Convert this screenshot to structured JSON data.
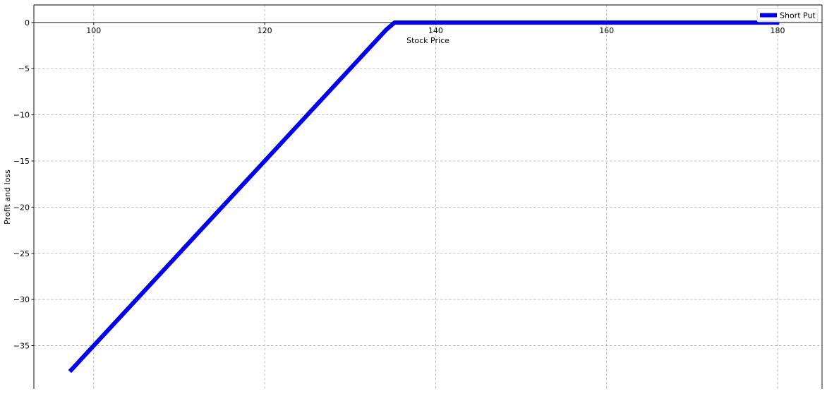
{
  "chart_data": {
    "type": "line",
    "xlabel": "Stock Price",
    "ylabel": "Profit and loss",
    "xlim": [
      93,
      185.2
    ],
    "ylim": [
      -39.7,
      1.9
    ],
    "xticks": [
      100,
      120,
      140,
      160,
      180
    ],
    "yticks": [
      0,
      -5,
      -10,
      -15,
      -20,
      -25,
      -30,
      -35
    ],
    "ytick_labels": [
      "0",
      "−5",
      "−10",
      "−15",
      "−20",
      "−25",
      "−30",
      "−35"
    ],
    "x_axis_position": "y=0",
    "grid": true,
    "legend": "top-right",
    "series": [
      {
        "name": "Short Put",
        "color": "#0000ee",
        "x": [
          97.2,
          134.2,
          135.2,
          180.2
        ],
        "y": [
          -37.8,
          -0.8,
          0,
          0
        ]
      }
    ]
  }
}
